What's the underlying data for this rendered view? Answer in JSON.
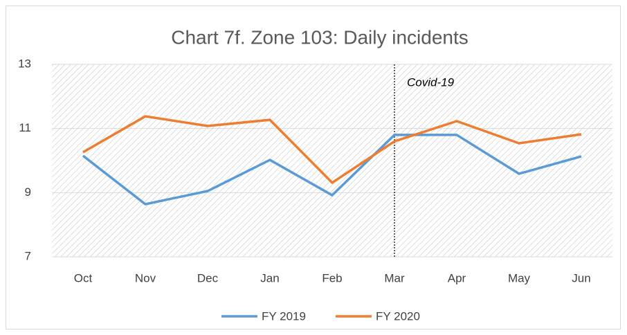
{
  "chart_data": {
    "type": "line",
    "title": "Chart 7f. Zone 103: Daily incidents",
    "categories": [
      "Oct",
      "Nov",
      "Dec",
      "Jan",
      "Feb",
      "Mar",
      "Apr",
      "May",
      "Jun"
    ],
    "series": [
      {
        "name": "FY 2019",
        "color": "#5b9bd5",
        "values": [
          10.15,
          8.64,
          9.05,
          10.02,
          8.92,
          10.8,
          10.8,
          9.59,
          10.13
        ]
      },
      {
        "name": "FY 2020",
        "color": "#ed7d31",
        "values": [
          10.26,
          11.38,
          11.08,
          11.27,
          9.31,
          10.6,
          11.23,
          10.54,
          10.82
        ]
      }
    ],
    "ylim": [
      7,
      13
    ],
    "yticks": [
      7,
      9,
      11,
      13
    ],
    "grid": true,
    "legend": "bottom",
    "annotation": {
      "text": "Covid-19",
      "category": "Mar"
    }
  }
}
